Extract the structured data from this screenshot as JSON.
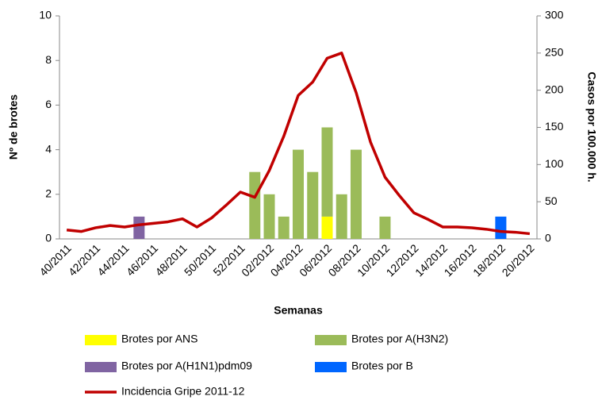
{
  "chart_data": {
    "type": "bar_line",
    "x_label": "Semanas",
    "y_label": "Nº de brotes",
    "y2_label": "Casos por 100.000 h.",
    "categories": [
      "40/2011",
      null,
      "42/2011",
      null,
      "44/2011",
      null,
      "46/2011",
      null,
      "48/2011",
      null,
      "50/2011",
      null,
      "52/2011",
      null,
      "02/2012",
      null,
      "04/2012",
      null,
      "06/2012",
      null,
      "08/2012",
      null,
      "10/2012",
      null,
      "12/2012",
      null,
      "14/2012",
      null,
      "16/2012",
      null,
      "18/2012",
      null,
      "20/2012"
    ],
    "ylim": [
      0,
      10
    ],
    "yticks": [
      0,
      2,
      4,
      6,
      8,
      10
    ],
    "y2lim": [
      0,
      300
    ],
    "y2ticks": [
      0,
      50,
      100,
      150,
      200,
      250,
      300
    ],
    "series": [
      {
        "name": "Brotes por ANS",
        "color": "#ffff00",
        "kind": "bar",
        "values": [
          0,
          0,
          0,
          0,
          0,
          0,
          0,
          0,
          0,
          0,
          0,
          0,
          0,
          0,
          0,
          0,
          0,
          0,
          1,
          0,
          0,
          0,
          0,
          0,
          0,
          0,
          0,
          0,
          0,
          0,
          0,
          0,
          0
        ]
      },
      {
        "name": "Brotes por A(H3N2)",
        "color": "#9bbb59",
        "kind": "bar",
        "values": [
          0,
          0,
          0,
          0,
          0,
          0,
          0,
          0,
          0,
          0,
          0,
          0,
          0,
          3,
          2,
          1,
          4,
          3,
          4,
          2,
          4,
          0,
          1,
          0,
          0,
          0,
          0,
          0,
          0,
          0,
          0,
          0,
          0
        ]
      },
      {
        "name": "Brotes por A(H1N1)pdm09",
        "color": "#8064a2",
        "kind": "bar",
        "values": [
          0,
          0,
          0,
          0,
          0,
          1,
          0,
          0,
          0,
          0,
          0,
          0,
          0,
          0,
          0,
          0,
          0,
          0,
          0,
          0,
          0,
          0,
          0,
          0,
          0,
          0,
          0,
          0,
          0,
          0,
          0,
          0,
          0
        ]
      },
      {
        "name": "Brotes por B",
        "color": "#0066ff",
        "kind": "bar",
        "values": [
          0,
          0,
          0,
          0,
          0,
          0,
          0,
          0,
          0,
          0,
          0,
          0,
          0,
          0,
          0,
          0,
          0,
          0,
          0,
          0,
          0,
          0,
          0,
          0,
          0,
          0,
          0,
          0,
          0,
          0,
          1,
          0,
          0
        ]
      },
      {
        "name": "Incidencia Gripe 2011-12",
        "color": "#c00000",
        "kind": "line",
        "axis": "y2",
        "values": [
          12,
          10,
          15,
          18,
          16,
          19,
          21,
          23,
          27,
          16,
          28,
          45,
          63,
          56,
          92,
          138,
          193,
          211,
          243,
          250,
          197,
          130,
          83,
          58,
          35,
          26,
          16,
          16,
          15,
          13,
          10,
          9,
          7
        ]
      }
    ]
  }
}
